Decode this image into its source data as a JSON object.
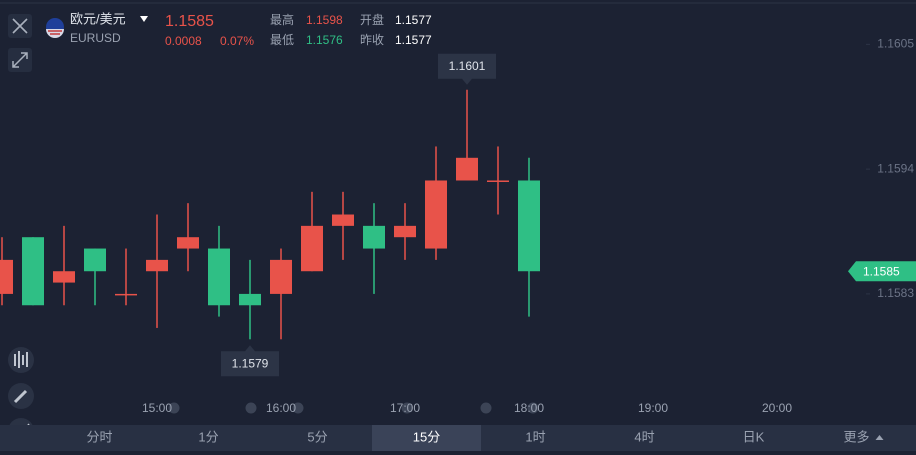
{
  "header": {
    "name": "欧元/美元",
    "symbol": "EURUSD",
    "price": 1.1585,
    "change": 0.0008,
    "change_pct": "0.07%",
    "stats": [
      {
        "label": "最高",
        "value": 1.1598
      },
      {
        "label": "开盘",
        "value": 1.1577
      },
      {
        "label": "最低",
        "value": 1.1576
      },
      {
        "label": "昨收",
        "value": 1.1577
      }
    ]
  },
  "chart_data": {
    "type": "candlestick",
    "up_color": "#e8534a",
    "down_color": "#2fbf85",
    "ylim": [
      1.1574,
      1.1609
    ],
    "yticks": [
      1.1605,
      1.1594,
      1.1583
    ],
    "time_labels": [
      "15:00",
      "16:00",
      "17:00",
      "18:00",
      "19:00",
      "20:00"
    ],
    "candles": [
      {
        "open": 1.1583,
        "high": 1.1588,
        "low": 1.1582,
        "close": 1.1586
      },
      {
        "open": 1.1588,
        "high": 1.1588,
        "low": 1.1582,
        "close": 1.1582
      },
      {
        "open": 1.1584,
        "high": 1.1589,
        "low": 1.1582,
        "close": 1.1585
      },
      {
        "open": 1.1587,
        "high": 1.1587,
        "low": 1.1582,
        "close": 1.1585
      },
      {
        "open": 1.1583,
        "high": 1.1587,
        "low": 1.1582,
        "close": 1.1583
      },
      {
        "open": 1.1585,
        "high": 1.159,
        "low": 1.158,
        "close": 1.1586
      },
      {
        "open": 1.1587,
        "high": 1.1591,
        "low": 1.1585,
        "close": 1.1588
      },
      {
        "open": 1.1587,
        "high": 1.1589,
        "low": 1.1581,
        "close": 1.1582
      },
      {
        "open": 1.1583,
        "high": 1.1586,
        "low": 1.1579,
        "close": 1.1582
      },
      {
        "open": 1.1583,
        "high": 1.1587,
        "low": 1.1579,
        "close": 1.1586
      },
      {
        "open": 1.1585,
        "high": 1.1592,
        "low": 1.1585,
        "close": 1.1589
      },
      {
        "open": 1.1589,
        "high": 1.1592,
        "low": 1.1586,
        "close": 1.159
      },
      {
        "open": 1.1589,
        "high": 1.1591,
        "low": 1.1583,
        "close": 1.1587
      },
      {
        "open": 1.1588,
        "high": 1.1591,
        "low": 1.1586,
        "close": 1.1589
      },
      {
        "open": 1.1587,
        "high": 1.1596,
        "low": 1.1586,
        "close": 1.1593
      },
      {
        "open": 1.1593,
        "high": 1.1601,
        "low": 1.1593,
        "close": 1.1595
      },
      {
        "open": 1.1593,
        "high": 1.1596,
        "low": 1.159,
        "close": 1.1593
      },
      {
        "open": 1.1593,
        "high": 1.1595,
        "low": 1.1581,
        "close": 1.1585
      }
    ],
    "annotations": {
      "high": 1.1601,
      "low": 1.1579
    },
    "last_price": 1.1585
  },
  "tabs": [
    "分时",
    "1分",
    "5分",
    "15分",
    "1时",
    "4时",
    "日K",
    "更多"
  ],
  "active_tab": 3
}
